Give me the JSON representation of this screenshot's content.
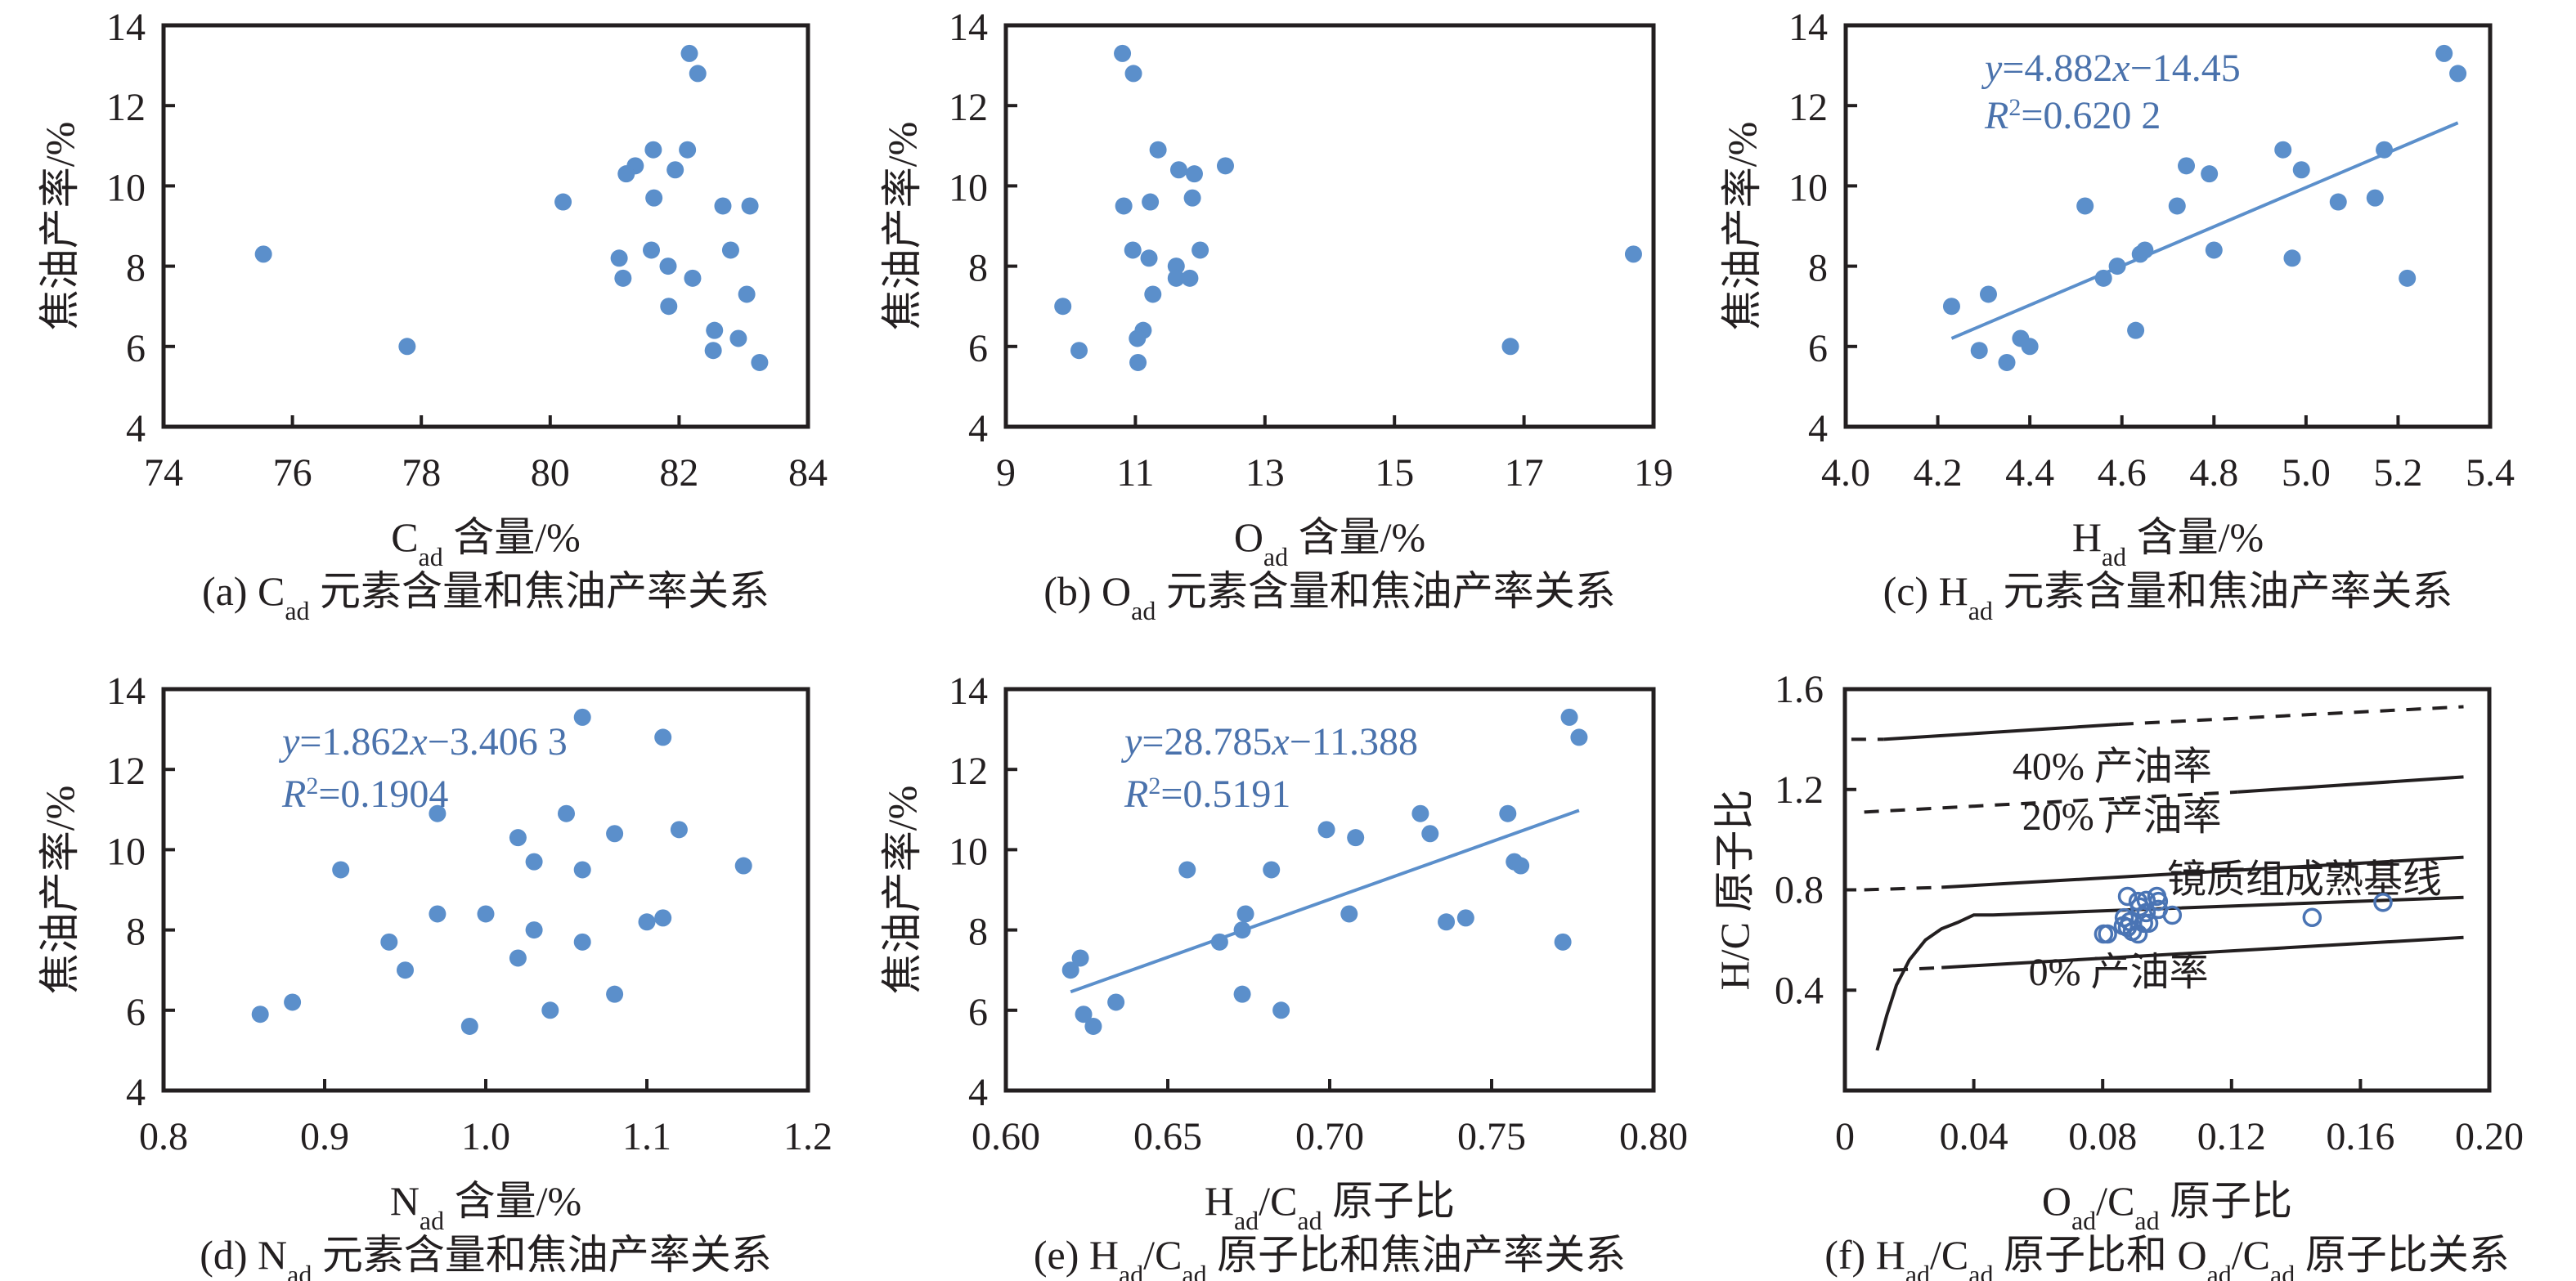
{
  "colors": {
    "marker": "#5b8fcb",
    "open_marker": "#4a74b4",
    "trendline": "#5b8fcb",
    "equation": "#4a72ac",
    "axis": "#231f20"
  },
  "chart_data": [
    {
      "id": "a",
      "type": "scatter",
      "caption": {
        "prefix": "(a) C",
        "sub": "ad",
        "suffix": " 元素含量和焦油产率关系"
      },
      "xlabel": {
        "main": "C",
        "sub": "ad",
        "suffix": " 含量/%"
      },
      "ylabel": "焦油产率/%",
      "xlim": [
        74,
        84
      ],
      "ylim": [
        4,
        14
      ],
      "xticks": [
        "74",
        "76",
        "78",
        "80",
        "82",
        "84"
      ],
      "yticks": [
        "4",
        "6",
        "8",
        "10",
        "12",
        "14"
      ],
      "marker": "filled",
      "points": [
        [
          75.55,
          8.3
        ],
        [
          77.78,
          6.0
        ],
        [
          80.2,
          9.6
        ],
        [
          82.16,
          13.3
        ],
        [
          82.29,
          12.8
        ],
        [
          81.6,
          10.9
        ],
        [
          82.13,
          10.9
        ],
        [
          81.32,
          10.5
        ],
        [
          81.18,
          10.3
        ],
        [
          81.94,
          10.4
        ],
        [
          81.61,
          9.7
        ],
        [
          82.68,
          9.5
        ],
        [
          83.1,
          9.5
        ],
        [
          81.57,
          8.4
        ],
        [
          81.07,
          8.2
        ],
        [
          82.8,
          8.4
        ],
        [
          81.83,
          8.0
        ],
        [
          81.13,
          7.7
        ],
        [
          82.21,
          7.7
        ],
        [
          83.05,
          7.3
        ],
        [
          81.84,
          7.0
        ],
        [
          82.55,
          6.4
        ],
        [
          82.92,
          6.2
        ],
        [
          82.53,
          5.9
        ],
        [
          83.25,
          5.6
        ]
      ]
    },
    {
      "id": "b",
      "type": "scatter",
      "caption": {
        "prefix": "(b) O",
        "sub": "ad",
        "suffix": " 元素含量和焦油产率关系"
      },
      "xlabel": {
        "main": "O",
        "sub": "ad",
        "suffix": " 含量/%"
      },
      "ylabel": "焦油产率/%",
      "xlim": [
        9,
        19
      ],
      "ylim": [
        4,
        14
      ],
      "xticks": [
        "9",
        "11",
        "13",
        "15",
        "17",
        "19"
      ],
      "yticks": [
        "4",
        "6",
        "8",
        "10",
        "12",
        "14"
      ],
      "marker": "filled",
      "points": [
        [
          10.8,
          13.3
        ],
        [
          10.97,
          12.8
        ],
        [
          11.35,
          10.9
        ],
        [
          11.67,
          10.4
        ],
        [
          11.91,
          10.3
        ],
        [
          12.39,
          10.5
        ],
        [
          10.82,
          9.5
        ],
        [
          11.23,
          9.6
        ],
        [
          11.88,
          9.7
        ],
        [
          10.96,
          8.4
        ],
        [
          11.21,
          8.2
        ],
        [
          12.0,
          8.4
        ],
        [
          11.63,
          8.0
        ],
        [
          11.63,
          7.7
        ],
        [
          11.84,
          7.7
        ],
        [
          11.27,
          7.3
        ],
        [
          9.88,
          7.0
        ],
        [
          10.13,
          5.9
        ],
        [
          11.12,
          6.4
        ],
        [
          11.03,
          6.2
        ],
        [
          11.04,
          5.6
        ],
        [
          16.79,
          6.0
        ],
        [
          18.69,
          8.3
        ]
      ]
    },
    {
      "id": "c",
      "type": "scatter",
      "caption": {
        "prefix": "(c) H",
        "sub": "ad",
        "suffix": " 元素含量和焦油产率关系"
      },
      "xlabel": {
        "main": "H",
        "sub": "ad",
        "suffix": " 含量/%"
      },
      "ylabel": "焦油产率/%",
      "xlim": [
        4.0,
        5.4
      ],
      "ylim": [
        4,
        14
      ],
      "xticks": [
        "4.0",
        "4.2",
        "4.4",
        "4.6",
        "4.8",
        "5.0",
        "5.2",
        "5.4"
      ],
      "yticks": [
        "4",
        "6",
        "8",
        "10",
        "12",
        "14"
      ],
      "marker": "filled",
      "points": [
        [
          5.3,
          13.3
        ],
        [
          5.33,
          12.8
        ],
        [
          5.17,
          10.9
        ],
        [
          4.95,
          10.9
        ],
        [
          4.99,
          10.4
        ],
        [
          4.74,
          10.5
        ],
        [
          4.79,
          10.3
        ],
        [
          4.52,
          9.5
        ],
        [
          4.72,
          9.5
        ],
        [
          5.07,
          9.6
        ],
        [
          5.15,
          9.7
        ],
        [
          4.64,
          8.3
        ],
        [
          4.65,
          8.4
        ],
        [
          4.8,
          8.4
        ],
        [
          4.97,
          8.2
        ],
        [
          4.59,
          8.0
        ],
        [
          4.56,
          7.7
        ],
        [
          5.22,
          7.7
        ],
        [
          4.31,
          7.3
        ],
        [
          4.23,
          7.0
        ],
        [
          4.63,
          6.4
        ],
        [
          4.38,
          6.2
        ],
        [
          4.4,
          6.0
        ],
        [
          4.29,
          5.9
        ],
        [
          4.35,
          5.6
        ]
      ],
      "trendline": {
        "slope": 4.882,
        "intercept": -14.45,
        "x_range": [
          4.23,
          5.33
        ]
      },
      "equation": {
        "prefix": "y",
        "body": "=4.882",
        "var": "x",
        "tail": "−14.45"
      },
      "r2": {
        "prefix": "R",
        "sup": "2",
        "body": "=0.620 2"
      }
    },
    {
      "id": "d",
      "type": "scatter",
      "caption": {
        "prefix": "(d) N",
        "sub": "ad",
        "suffix": " 元素含量和焦油产率关系"
      },
      "xlabel": {
        "main": "N",
        "sub": "ad",
        "suffix": " 含量/%"
      },
      "ylabel": "焦油产率/%",
      "xlim": [
        0.8,
        1.2
      ],
      "ylim": [
        4,
        14
      ],
      "xticks": [
        "0.8",
        "0.9",
        "1.0",
        "1.1",
        "1.2"
      ],
      "yticks": [
        "4",
        "6",
        "8",
        "10",
        "12",
        "14"
      ],
      "marker": "filled",
      "points": [
        [
          1.06,
          13.3
        ],
        [
          1.11,
          12.8
        ],
        [
          0.97,
          10.9
        ],
        [
          1.05,
          10.9
        ],
        [
          1.12,
          10.5
        ],
        [
          1.08,
          10.4
        ],
        [
          1.02,
          10.3
        ],
        [
          1.03,
          9.7
        ],
        [
          1.06,
          9.5
        ],
        [
          0.91,
          9.5
        ],
        [
          1.16,
          9.6
        ],
        [
          0.97,
          8.4
        ],
        [
          1.0,
          8.4
        ],
        [
          1.1,
          8.2
        ],
        [
          1.11,
          8.3
        ],
        [
          1.03,
          8.0
        ],
        [
          0.94,
          7.7
        ],
        [
          1.06,
          7.7
        ],
        [
          1.02,
          7.3
        ],
        [
          0.95,
          7.0
        ],
        [
          1.08,
          6.4
        ],
        [
          0.88,
          6.2
        ],
        [
          1.04,
          6.0
        ],
        [
          0.86,
          5.9
        ],
        [
          0.99,
          5.6
        ]
      ],
      "trendline": {
        "slope": 1.862,
        "intercept": -3.4063,
        "x_range": [
          0.86,
          1.16
        ]
      },
      "equation": {
        "prefix": "y",
        "body": "=1.862",
        "var": "x",
        "tail": "−3.406 3"
      },
      "r2": {
        "prefix": "R",
        "sup": "2",
        "body": "=0.1904"
      }
    },
    {
      "id": "e",
      "type": "scatter",
      "caption": {
        "prefix": "(e) H",
        "sub": "ad",
        "mid": "/C",
        "sub2": "ad",
        "suffix": " 原子比和焦油产率关系"
      },
      "xlabel": {
        "main": "H",
        "sub": "ad",
        "mid": "/C",
        "sub2": "ad",
        "suffix": " 原子比"
      },
      "ylabel": "焦油产率/%",
      "xlim": [
        0.6,
        0.8
      ],
      "ylim": [
        4,
        14
      ],
      "xticks": [
        "0.60",
        "0.65",
        "0.70",
        "0.75",
        "0.80"
      ],
      "yticks": [
        "4",
        "6",
        "8",
        "10",
        "12",
        "14"
      ],
      "marker": "filled",
      "points": [
        [
          0.774,
          13.3
        ],
        [
          0.777,
          12.8
        ],
        [
          0.728,
          10.9
        ],
        [
          0.755,
          10.9
        ],
        [
          0.699,
          10.5
        ],
        [
          0.731,
          10.4
        ],
        [
          0.708,
          10.3
        ],
        [
          0.656,
          9.5
        ],
        [
          0.682,
          9.5
        ],
        [
          0.757,
          9.7
        ],
        [
          0.759,
          9.6
        ],
        [
          0.674,
          8.4
        ],
        [
          0.706,
          8.4
        ],
        [
          0.736,
          8.2
        ],
        [
          0.742,
          8.3
        ],
        [
          0.673,
          8.0
        ],
        [
          0.666,
          7.7
        ],
        [
          0.772,
          7.7
        ],
        [
          0.623,
          7.3
        ],
        [
          0.62,
          7.0
        ],
        [
          0.673,
          6.4
        ],
        [
          0.634,
          6.2
        ],
        [
          0.685,
          6.0
        ],
        [
          0.624,
          5.9
        ],
        [
          0.627,
          5.6
        ]
      ],
      "trendline": {
        "slope": 28.785,
        "intercept": -11.388,
        "x_range": [
          0.62,
          0.777
        ]
      },
      "equation": {
        "prefix": "y",
        "body": "=28.785",
        "var": "x",
        "tail": "−11.388"
      },
      "r2": {
        "prefix": "R",
        "sup": "2",
        "body": "=0.5191"
      }
    },
    {
      "id": "f",
      "type": "scatter",
      "caption": {
        "prefix": "(f) H",
        "sub": "ad",
        "mid": "/C",
        "sub2": "ad",
        "mid2": " 原子比和 O",
        "sub3": "ad",
        "mid3": "/C",
        "sub4": "ad",
        "suffix": " 原子比关系"
      },
      "xlabel": {
        "main": "O",
        "sub": "ad",
        "mid": "/C",
        "sub2": "ad",
        "suffix": " 原子比"
      },
      "ylabel": "H/C 原子比",
      "xlim": [
        0,
        0.2
      ],
      "ylim": [
        0,
        1.6
      ],
      "xticks": [
        "0",
        "0.04",
        "0.08",
        "0.12",
        "0.16",
        "0.20"
      ],
      "yticks": [
        "0.4",
        "0.8",
        "1.2",
        "1.6"
      ],
      "ytick_values": [
        0.4,
        0.8,
        1.2,
        1.6
      ],
      "marker": "open",
      "points": [
        [
          0.0803,
          0.624
        ],
        [
          0.0815,
          0.624
        ],
        [
          0.0877,
          0.774
        ],
        [
          0.091,
          0.754
        ],
        [
          0.0935,
          0.758
        ],
        [
          0.0968,
          0.774
        ],
        [
          0.0973,
          0.754
        ],
        [
          0.0867,
          0.689
        ],
        [
          0.0884,
          0.673
        ],
        [
          0.0877,
          0.65
        ],
        [
          0.0892,
          0.634
        ],
        [
          0.091,
          0.624
        ],
        [
          0.0927,
          0.667
        ],
        [
          0.0943,
          0.667
        ],
        [
          0.0935,
          0.709
        ],
        [
          0.0973,
          0.722
        ],
        [
          0.1016,
          0.699
        ],
        [
          0.0864,
          0.657
        ],
        [
          0.0915,
          0.732
        ],
        [
          0.145,
          0.69
        ],
        [
          0.167,
          0.75
        ]
      ],
      "reference_lines": [
        {
          "name": "upper-line",
          "segments": [
            {
              "style": "dashed",
              "pts": [
                [
                  0.002,
                  1.4
                ],
                [
                  0.012,
                  1.4
                ]
              ]
            },
            {
              "style": "solid",
              "pts": [
                [
                  0.012,
                  1.4
                ],
                [
                  0.085,
                  1.46
                ]
              ]
            },
            {
              "style": "dashed",
              "pts": [
                [
                  0.085,
                  1.46
                ],
                [
                  0.192,
                  1.53
                ]
              ]
            }
          ]
        },
        {
          "name": "40-percent-line",
          "segments": [
            {
              "style": "dashed",
              "pts": [
                [
                  0.006,
                  1.11
                ],
                [
                  0.122,
                  1.19
                ]
              ]
            },
            {
              "style": "solid",
              "pts": [
                [
                  0.122,
                  1.19
                ],
                [
                  0.192,
                  1.25
                ]
              ]
            }
          ]
        },
        {
          "name": "20-percent-line",
          "segments": [
            {
              "style": "dashed",
              "pts": [
                [
                  0.006,
                  0.8
                ],
                [
                  0.03,
                  0.81
                ]
              ]
            },
            {
              "style": "solid",
              "pts": [
                [
                  0.03,
                  0.81
                ],
                [
                  0.192,
                  0.93
                ]
              ]
            }
          ]
        },
        {
          "name": "vitrinite-maturation-baseline",
          "segments": [
            {
              "style": "solid",
              "pts": [
                [
                  0.01,
                  0.16
                ],
                [
                  0.013,
                  0.3
                ],
                [
                  0.016,
                  0.42
                ],
                [
                  0.02,
                  0.52
                ],
                [
                  0.025,
                  0.6
                ],
                [
                  0.03,
                  0.645
                ],
                [
                  0.035,
                  0.67
                ],
                [
                  0.04,
                  0.7
                ],
                [
                  0.046,
                  0.7
                ],
                [
                  0.192,
                  0.77
                ]
              ]
            }
          ]
        },
        {
          "name": "0-percent-line",
          "segments": [
            {
              "style": "dashed",
              "pts": [
                [
                  0.015,
                  0.48
                ],
                [
                  0.03,
                  0.49
                ]
              ]
            },
            {
              "style": "solid",
              "pts": [
                [
                  0.03,
                  0.49
                ],
                [
                  0.192,
                  0.61
                ]
              ]
            }
          ]
        }
      ],
      "annotations": [
        {
          "name": "label-40-percent",
          "text": "40% 产油率",
          "x": 0.052,
          "y": 1.24
        },
        {
          "name": "label-20-percent",
          "text": "20% 产油率",
          "x": 0.055,
          "y": 1.04
        },
        {
          "name": "label-vitrinite-baseline",
          "text": "镜质组成熟基线",
          "x": 0.1,
          "y": 0.79
        },
        {
          "name": "label-0-percent",
          "text": "0% 产油率",
          "x": 0.057,
          "y": 0.42
        }
      ]
    }
  ]
}
